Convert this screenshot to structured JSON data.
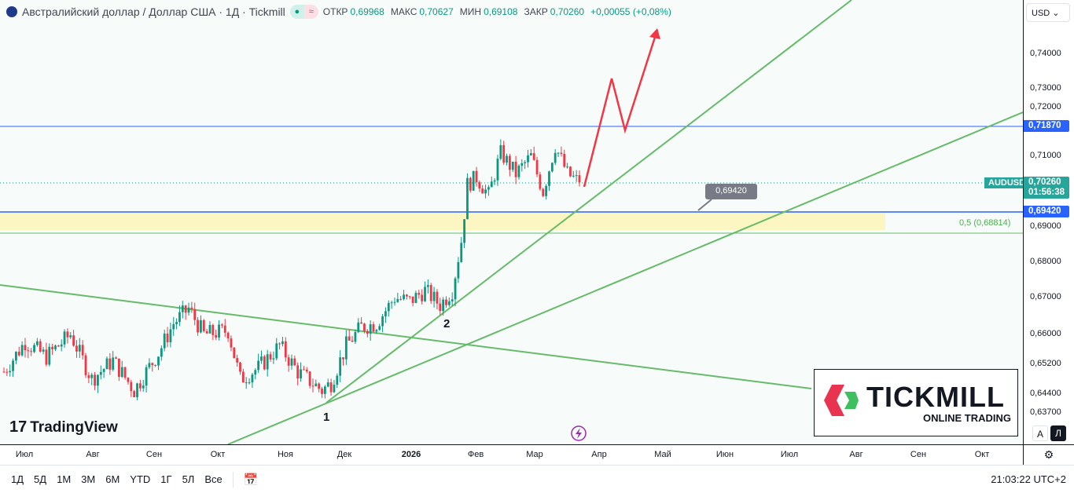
{
  "header": {
    "title": "Австралийский доллар / Доллар США · 1Д · Tickmill",
    "open_label": "ОТКР",
    "open": "0,69968",
    "high_label": "МАКС",
    "high": "0,70627",
    "low_label": "МИН",
    "low": "0,69108",
    "close_label": "ЗАКР",
    "close": "0,70260",
    "change": "+0,00055 (+0,08%)"
  },
  "currency": "USD",
  "price_axis": {
    "ticks": [
      "0,74000",
      "0,73000",
      "0,72000",
      "0,71000",
      "0,69000",
      "0,68000",
      "0,67000",
      "0,66000",
      "0,65200",
      "0,64400",
      "0,63700"
    ],
    "resistance": "0,71870",
    "last_symbol": "AUDUSD",
    "last": "0,70260",
    "countdown": "01:56:38",
    "support": "0,69420"
  },
  "annotations": {
    "callout": "0,69420",
    "fib": "0,5 (0,68814)",
    "wave1": "1",
    "wave2": "2"
  },
  "time_axis": [
    "Июл",
    "Авг",
    "Сен",
    "Окт",
    "Ноя",
    "Дек",
    "2026",
    "Фев",
    "Мар",
    "Апр",
    "Май",
    "Июн",
    "Июл",
    "Авг",
    "Сен",
    "Окт"
  ],
  "toolbar": {
    "ranges": [
      "1Д",
      "5Д",
      "1М",
      "3М",
      "6М",
      "YTD",
      "1Г",
      "5Л",
      "Все"
    ],
    "clock": "21:03:22 UTC+2",
    "auto": "A",
    "log": "Л"
  },
  "branding": {
    "tradingview": "TradingView",
    "tickmill": "TICKMILL",
    "tickmill_sub": "ONLINE TRADING"
  },
  "colors": {
    "up": "#089981",
    "down": "#f23645",
    "blue": "#2962ff",
    "green": "#66bb6a",
    "red": "#f23645"
  },
  "chart_data": {
    "type": "candlestick",
    "symbol": "AUDUSD",
    "key_closes": [
      [
        0,
        0.65
      ],
      [
        7,
        0.658
      ],
      [
        14,
        0.654
      ],
      [
        22,
        0.66
      ],
      [
        29,
        0.648
      ],
      [
        36,
        0.653
      ],
      [
        43,
        0.645
      ],
      [
        51,
        0.655
      ],
      [
        56,
        0.663
      ],
      [
        61,
        0.667
      ],
      [
        66,
        0.66
      ],
      [
        74,
        0.661
      ],
      [
        78,
        0.648
      ],
      [
        84,
        0.651
      ],
      [
        91,
        0.657
      ],
      [
        97,
        0.65
      ],
      [
        105,
        0.645
      ],
      [
        108,
        0.647
      ],
      [
        113,
        0.657
      ],
      [
        118,
        0.662
      ],
      [
        123,
        0.663
      ],
      [
        129,
        0.67
      ],
      [
        134,
        0.669
      ],
      [
        139,
        0.672
      ],
      [
        144,
        0.668
      ],
      [
        148,
        0.672
      ],
      [
        151,
        0.686
      ],
      [
        153,
        0.702
      ],
      [
        156,
        0.704
      ],
      [
        160,
        0.699
      ],
      [
        164,
        0.711
      ],
      [
        169,
        0.705
      ],
      [
        174,
        0.71
      ],
      [
        178,
        0.7
      ],
      [
        182,
        0.713
      ],
      [
        186,
        0.705
      ],
      [
        190,
        0.7026
      ]
    ]
  }
}
